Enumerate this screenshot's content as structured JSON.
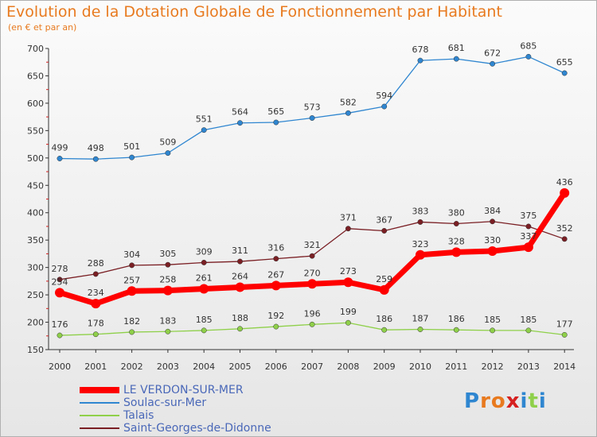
{
  "header": {
    "title": "Evolution de la Dotation Globale de Fonctionnement par Habitant",
    "subtitle": "(en € et par an)"
  },
  "chart_data": {
    "type": "line",
    "title": "Evolution de la Dotation Globale de Fonctionnement par Habitant",
    "subtitle": "(en € et par an)",
    "xlabel": "",
    "ylabel": "",
    "x": [
      2000,
      2001,
      2002,
      2003,
      2004,
      2005,
      2006,
      2007,
      2008,
      2009,
      2010,
      2011,
      2012,
      2013,
      2014
    ],
    "ylim": [
      150,
      700
    ],
    "yticks": [
      150,
      200,
      250,
      300,
      350,
      400,
      450,
      500,
      550,
      600,
      650,
      700
    ],
    "grid": false,
    "legend_position": "bottom-left",
    "series": [
      {
        "name": "LE VERDON-SUR-MER",
        "color": "#ff0000",
        "values": [
          254,
          234,
          257,
          258,
          261,
          264,
          267,
          270,
          273,
          259,
          323,
          328,
          330,
          337,
          436
        ]
      },
      {
        "name": "Soulac-sur-Mer",
        "color": "#2f86d0",
        "values": [
          499,
          498,
          501,
          509,
          551,
          564,
          565,
          573,
          582,
          594,
          678,
          681,
          672,
          685,
          655
        ]
      },
      {
        "name": "Talais",
        "color": "#8fd04a",
        "values": [
          176,
          178,
          182,
          183,
          185,
          188,
          192,
          196,
          199,
          186,
          187,
          186,
          185,
          185,
          177
        ]
      },
      {
        "name": "Saint-Georges-de-Didonne",
        "color": "#7a1f24",
        "values": [
          278,
          288,
          304,
          305,
          309,
          311,
          316,
          321,
          371,
          367,
          383,
          380,
          384,
          375,
          352
        ]
      }
    ]
  },
  "logo": {
    "letters": [
      "P",
      "r",
      "o",
      "x",
      "i",
      "t",
      "i"
    ],
    "colors": [
      "#2f86d0",
      "#e87a1f",
      "#e87a1f",
      "#d62020",
      "#2f86d0",
      "#8fd04a",
      "#2f86d0"
    ]
  }
}
